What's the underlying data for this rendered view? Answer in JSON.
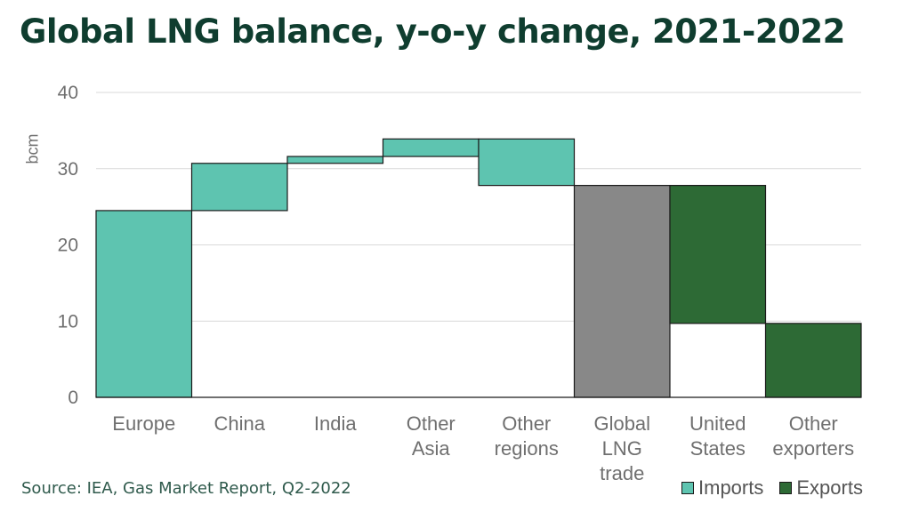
{
  "chart_data": {
    "type": "bar",
    "title": "Global LNG balance, y-o-y change, 2021-2022",
    "ylabel": "bcm",
    "xlabel": "",
    "ylim": [
      0,
      40
    ],
    "yticks": [
      0,
      10,
      20,
      30,
      40
    ],
    "grid": true,
    "waterfall": true,
    "categories": [
      {
        "label": "Europe",
        "lines": [
          "Europe"
        ],
        "start": 0,
        "end": 24.5,
        "series": "Imports"
      },
      {
        "label": "China",
        "lines": [
          "China"
        ],
        "start": 24.5,
        "end": 30.7,
        "series": "Imports"
      },
      {
        "label": "India",
        "lines": [
          "India"
        ],
        "start": 30.7,
        "end": 31.6,
        "series": "Imports"
      },
      {
        "label": "Other Asia",
        "lines": [
          "Other",
          "Asia"
        ],
        "start": 31.6,
        "end": 33.9,
        "series": "Imports"
      },
      {
        "label": "Other regions",
        "lines": [
          "Other",
          "regions"
        ],
        "start": 33.9,
        "end": 27.8,
        "series": "Imports"
      },
      {
        "label": "Global LNG trade",
        "lines": [
          "Global",
          "LNG",
          "trade"
        ],
        "start": 0,
        "end": 27.8,
        "series": "Total"
      },
      {
        "label": "United States",
        "lines": [
          "United",
          "States"
        ],
        "start": 27.8,
        "end": 9.7,
        "series": "Exports"
      },
      {
        "label": "Other exporters",
        "lines": [
          "Other",
          "exporters"
        ],
        "start": 9.7,
        "end": 0,
        "series": "Exports"
      }
    ],
    "legend": {
      "position": "bottom-right",
      "items": [
        {
          "name": "Imports",
          "color": "#5ec4b0"
        },
        {
          "name": "Exports",
          "color": "#2d6a35"
        }
      ]
    },
    "colors": {
      "Imports": "#5ec4b0",
      "Exports": "#2d6a35",
      "Total": "#888888"
    }
  },
  "source": "Source: IEA, Gas Market Report, Q2-2022"
}
